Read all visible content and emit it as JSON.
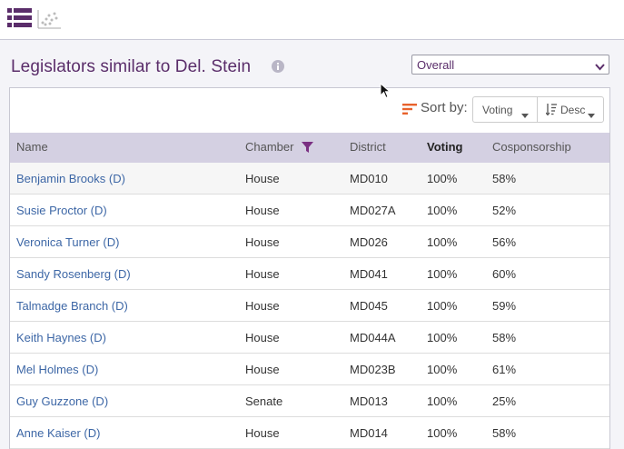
{
  "toolbar": {
    "list_view_icon": "list-view-icon",
    "scatter_view_icon": "scatter-plot-icon"
  },
  "header": {
    "title": "Legislators similar to Del. Stein",
    "filter_select": {
      "selected": "Overall"
    }
  },
  "sort": {
    "label": "Sort by:",
    "field": "Voting",
    "direction": "Desc"
  },
  "table": {
    "columns": [
      "Name",
      "Chamber",
      "District",
      "Voting",
      "Cosponsorship"
    ],
    "rows": [
      {
        "name": "Benjamin Brooks (D)",
        "chamber": "House",
        "district": "MD010",
        "voting": "100%",
        "cosponsorship": "58%"
      },
      {
        "name": "Susie Proctor (D)",
        "chamber": "House",
        "district": "MD027A",
        "voting": "100%",
        "cosponsorship": "52%"
      },
      {
        "name": "Veronica Turner (D)",
        "chamber": "House",
        "district": "MD026",
        "voting": "100%",
        "cosponsorship": "56%"
      },
      {
        "name": "Sandy Rosenberg (D)",
        "chamber": "House",
        "district": "MD041",
        "voting": "100%",
        "cosponsorship": "60%"
      },
      {
        "name": "Talmadge Branch (D)",
        "chamber": "House",
        "district": "MD045",
        "voting": "100%",
        "cosponsorship": "59%"
      },
      {
        "name": "Keith Haynes (D)",
        "chamber": "House",
        "district": "MD044A",
        "voting": "100%",
        "cosponsorship": "58%"
      },
      {
        "name": "Mel Holmes (D)",
        "chamber": "House",
        "district": "MD023B",
        "voting": "100%",
        "cosponsorship": "61%"
      },
      {
        "name": "Guy Guzzone (D)",
        "chamber": "Senate",
        "district": "MD013",
        "voting": "100%",
        "cosponsorship": "25%"
      },
      {
        "name": "Anne Kaiser (D)",
        "chamber": "House",
        "district": "MD014",
        "voting": "100%",
        "cosponsorship": "58%"
      }
    ]
  },
  "colors": {
    "accent": "#5a2d6a",
    "link": "#3d67a6",
    "header_bg": "#d4d0e2",
    "sort_icon": "#e8622c"
  }
}
